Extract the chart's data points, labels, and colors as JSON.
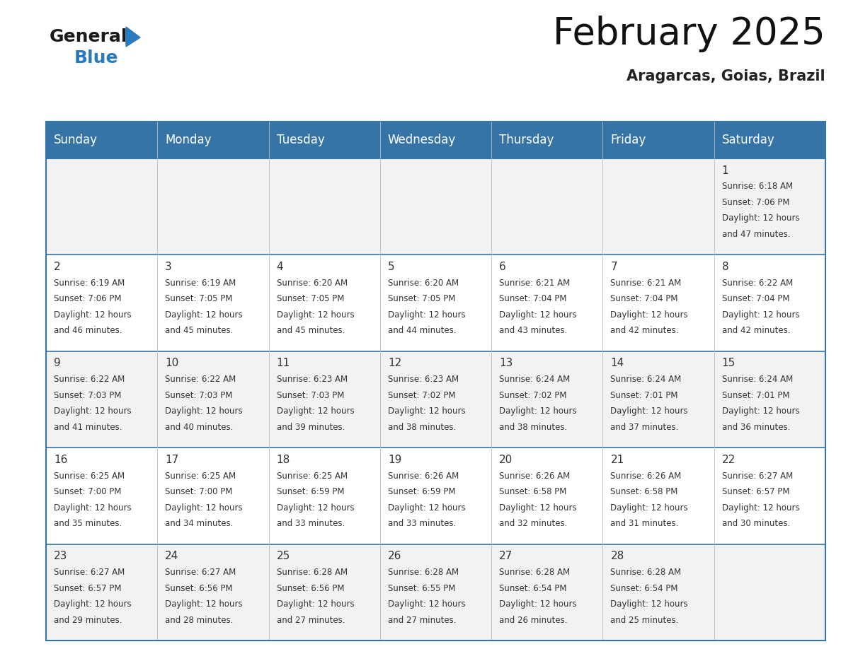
{
  "title": "February 2025",
  "subtitle": "Aragarcas, Goias, Brazil",
  "header_color": "#3674a8",
  "header_text_color": "#ffffff",
  "days_of_week": [
    "Sunday",
    "Monday",
    "Tuesday",
    "Wednesday",
    "Thursday",
    "Friday",
    "Saturday"
  ],
  "cell_bg_color": "#f2f2f2",
  "cell_bg_white": "#ffffff",
  "border_color": "#3674a8",
  "divider_color": "#3674a8",
  "text_color": "#333333",
  "day_num_color": "#333333",
  "logo_color1": "#1a1a1a",
  "logo_color2": "#2a7abf",
  "logo_triangle_color": "#2a7abf",
  "calendar_data": [
    [
      null,
      null,
      null,
      null,
      null,
      null,
      {
        "day": 1,
        "sunrise": "6:18 AM",
        "sunset": "7:06 PM",
        "daylight": "12 hours",
        "daylight2": "and 47 minutes."
      }
    ],
    [
      {
        "day": 2,
        "sunrise": "6:19 AM",
        "sunset": "7:06 PM",
        "daylight": "12 hours",
        "daylight2": "and 46 minutes."
      },
      {
        "day": 3,
        "sunrise": "6:19 AM",
        "sunset": "7:05 PM",
        "daylight": "12 hours",
        "daylight2": "and 45 minutes."
      },
      {
        "day": 4,
        "sunrise": "6:20 AM",
        "sunset": "7:05 PM",
        "daylight": "12 hours",
        "daylight2": "and 45 minutes."
      },
      {
        "day": 5,
        "sunrise": "6:20 AM",
        "sunset": "7:05 PM",
        "daylight": "12 hours",
        "daylight2": "and 44 minutes."
      },
      {
        "day": 6,
        "sunrise": "6:21 AM",
        "sunset": "7:04 PM",
        "daylight": "12 hours",
        "daylight2": "and 43 minutes."
      },
      {
        "day": 7,
        "sunrise": "6:21 AM",
        "sunset": "7:04 PM",
        "daylight": "12 hours",
        "daylight2": "and 42 minutes."
      },
      {
        "day": 8,
        "sunrise": "6:22 AM",
        "sunset": "7:04 PM",
        "daylight": "12 hours",
        "daylight2": "and 42 minutes."
      }
    ],
    [
      {
        "day": 9,
        "sunrise": "6:22 AM",
        "sunset": "7:03 PM",
        "daylight": "12 hours",
        "daylight2": "and 41 minutes."
      },
      {
        "day": 10,
        "sunrise": "6:22 AM",
        "sunset": "7:03 PM",
        "daylight": "12 hours",
        "daylight2": "and 40 minutes."
      },
      {
        "day": 11,
        "sunrise": "6:23 AM",
        "sunset": "7:03 PM",
        "daylight": "12 hours",
        "daylight2": "and 39 minutes."
      },
      {
        "day": 12,
        "sunrise": "6:23 AM",
        "sunset": "7:02 PM",
        "daylight": "12 hours",
        "daylight2": "and 38 minutes."
      },
      {
        "day": 13,
        "sunrise": "6:24 AM",
        "sunset": "7:02 PM",
        "daylight": "12 hours",
        "daylight2": "and 38 minutes."
      },
      {
        "day": 14,
        "sunrise": "6:24 AM",
        "sunset": "7:01 PM",
        "daylight": "12 hours",
        "daylight2": "and 37 minutes."
      },
      {
        "day": 15,
        "sunrise": "6:24 AM",
        "sunset": "7:01 PM",
        "daylight": "12 hours",
        "daylight2": "and 36 minutes."
      }
    ],
    [
      {
        "day": 16,
        "sunrise": "6:25 AM",
        "sunset": "7:00 PM",
        "daylight": "12 hours",
        "daylight2": "and 35 minutes."
      },
      {
        "day": 17,
        "sunrise": "6:25 AM",
        "sunset": "7:00 PM",
        "daylight": "12 hours",
        "daylight2": "and 34 minutes."
      },
      {
        "day": 18,
        "sunrise": "6:25 AM",
        "sunset": "6:59 PM",
        "daylight": "12 hours",
        "daylight2": "and 33 minutes."
      },
      {
        "day": 19,
        "sunrise": "6:26 AM",
        "sunset": "6:59 PM",
        "daylight": "12 hours",
        "daylight2": "and 33 minutes."
      },
      {
        "day": 20,
        "sunrise": "6:26 AM",
        "sunset": "6:58 PM",
        "daylight": "12 hours",
        "daylight2": "and 32 minutes."
      },
      {
        "day": 21,
        "sunrise": "6:26 AM",
        "sunset": "6:58 PM",
        "daylight": "12 hours",
        "daylight2": "and 31 minutes."
      },
      {
        "day": 22,
        "sunrise": "6:27 AM",
        "sunset": "6:57 PM",
        "daylight": "12 hours",
        "daylight2": "and 30 minutes."
      }
    ],
    [
      {
        "day": 23,
        "sunrise": "6:27 AM",
        "sunset": "6:57 PM",
        "daylight": "12 hours",
        "daylight2": "and 29 minutes."
      },
      {
        "day": 24,
        "sunrise": "6:27 AM",
        "sunset": "6:56 PM",
        "daylight": "12 hours",
        "daylight2": "and 28 minutes."
      },
      {
        "day": 25,
        "sunrise": "6:28 AM",
        "sunset": "6:56 PM",
        "daylight": "12 hours",
        "daylight2": "and 27 minutes."
      },
      {
        "day": 26,
        "sunrise": "6:28 AM",
        "sunset": "6:55 PM",
        "daylight": "12 hours",
        "daylight2": "and 27 minutes."
      },
      {
        "day": 27,
        "sunrise": "6:28 AM",
        "sunset": "6:54 PM",
        "daylight": "12 hours",
        "daylight2": "and 26 minutes."
      },
      {
        "day": 28,
        "sunrise": "6:28 AM",
        "sunset": "6:54 PM",
        "daylight": "12 hours",
        "daylight2": "and 25 minutes."
      },
      null
    ]
  ],
  "title_fontsize": 38,
  "subtitle_fontsize": 15,
  "header_fontsize": 12,
  "daynum_fontsize": 11,
  "cell_fontsize": 8.5
}
